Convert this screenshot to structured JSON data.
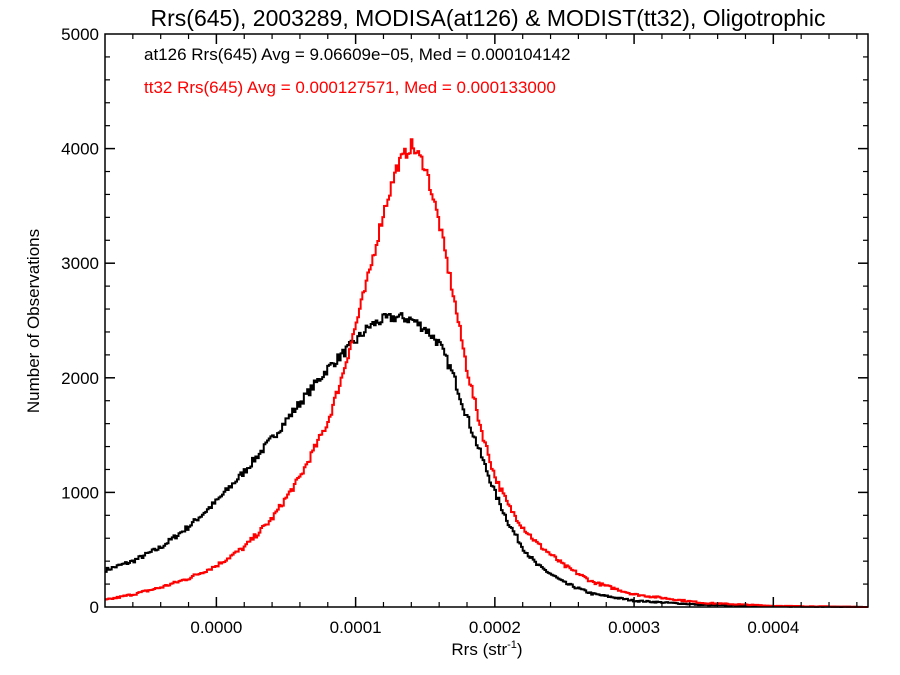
{
  "chart_data": {
    "type": "line",
    "title": "Rrs(645), 2003289, MODISA(at126) & MODIST(tt32), Oligotrophic",
    "xlabel_base": "Rrs (str",
    "xlabel_sup": "-1",
    "xlabel_close": ")",
    "ylabel": "Number of Observations",
    "xlim": [
      -8e-05,
      0.000468
    ],
    "ylim": [
      0,
      5000
    ],
    "x_ticks": [
      "0.0000",
      "0.0001",
      "0.0002",
      "0.0003",
      "0.0004"
    ],
    "y_ticks": [
      "0",
      "1000",
      "2000",
      "3000",
      "4000",
      "5000"
    ],
    "grid": false,
    "step_style": "histogram",
    "annotations": [
      {
        "text": "at126 Rrs(645) Avg = 9.06609e−05, Med = 0.000104142",
        "color": "#000000"
      },
      {
        "text": "tt32 Rrs(645) Avg = 0.000127571, Med = 0.000133000",
        "color": "#ff0000"
      }
    ],
    "series": [
      {
        "color": "#000000",
        "x": [
          -8e-05,
          -6e-05,
          -4e-05,
          -2e-05,
          0.0,
          2e-05,
          4e-05,
          6e-05,
          8e-05,
          0.0001,
          0.00011,
          0.00012,
          0.00013,
          0.00014,
          0.00015,
          0.00016,
          0.00017,
          0.00018,
          0.00019,
          0.0002,
          0.00021,
          0.00022,
          0.00023,
          0.00025,
          0.00027,
          0.0003,
          0.00035,
          0.0004,
          0.000468
        ],
        "y": [
          320,
          400,
          520,
          700,
          920,
          1180,
          1470,
          1780,
          2080,
          2320,
          2450,
          2510,
          2530,
          2510,
          2430,
          2300,
          2030,
          1660,
          1330,
          1000,
          730,
          520,
          370,
          210,
          115,
          55,
          18,
          5,
          0
        ]
      },
      {
        "color": "#ff0000",
        "x": [
          -8e-05,
          -6e-05,
          -4e-05,
          -2e-05,
          0.0,
          2e-05,
          4e-05,
          6e-05,
          8e-05,
          9e-05,
          0.0001,
          0.00011,
          0.00012,
          0.00013,
          0.00014,
          0.00015,
          0.00016,
          0.00017,
          0.00018,
          0.00019,
          0.0002,
          0.00021,
          0.00022,
          0.00023,
          0.00025,
          0.00027,
          0.0003,
          0.00035,
          0.0004,
          0.000468
        ],
        "y": [
          60,
          110,
          170,
          250,
          360,
          520,
          770,
          1130,
          1610,
          2000,
          2450,
          2920,
          3440,
          3850,
          4030,
          3850,
          3360,
          2740,
          2080,
          1560,
          1140,
          880,
          700,
          560,
          360,
          220,
          110,
          35,
          10,
          0
        ]
      }
    ]
  }
}
